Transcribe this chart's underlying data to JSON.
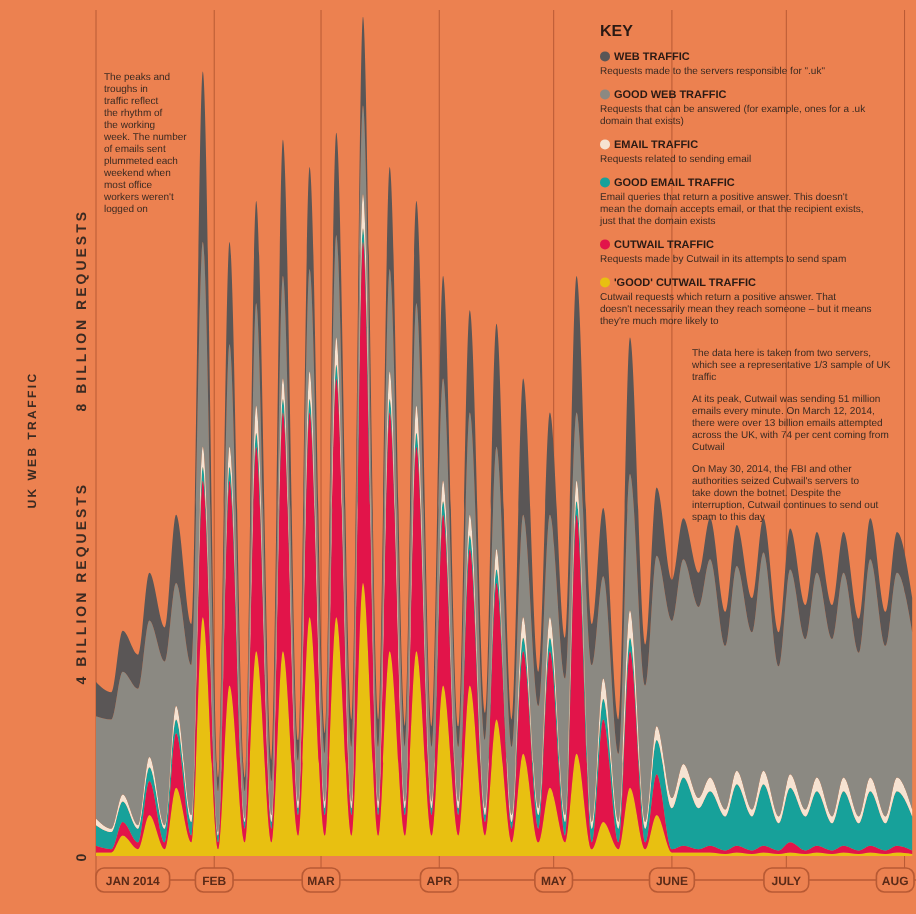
{
  "chart_data": {
    "type": "area",
    "stacked": true,
    "ylabel": "UK WEB TRAFFIC",
    "legend_title": "KEY",
    "legend": "top right",
    "grid": "x",
    "x": [
      "2014-01-01",
      "2014-01-05",
      "2014-01-08",
      "2014-01-12",
      "2014-01-15",
      "2014-01-19",
      "2014-01-22",
      "2014-01-26",
      "2014-01-29",
      "2014-02-02",
      "2014-02-05",
      "2014-02-09",
      "2014-02-12",
      "2014-02-16",
      "2014-02-19",
      "2014-02-23",
      "2014-02-26",
      "2014-03-02",
      "2014-03-05",
      "2014-03-09",
      "2014-03-12",
      "2014-03-16",
      "2014-03-19",
      "2014-03-23",
      "2014-03-26",
      "2014-03-30",
      "2014-04-02",
      "2014-04-06",
      "2014-04-09",
      "2014-04-13",
      "2014-04-16",
      "2014-04-20",
      "2014-04-23",
      "2014-04-27",
      "2014-04-30",
      "2014-05-04",
      "2014-05-07",
      "2014-05-11",
      "2014-05-14",
      "2014-05-18",
      "2014-05-21",
      "2014-05-25",
      "2014-05-28",
      "2014-06-01",
      "2014-06-04",
      "2014-06-08",
      "2014-06-11",
      "2014-06-15",
      "2014-06-18",
      "2014-06-22",
      "2014-06-25",
      "2014-06-29",
      "2014-07-02",
      "2014-07-06",
      "2014-07-09",
      "2014-07-13",
      "2014-07-16",
      "2014-07-20",
      "2014-07-23",
      "2014-07-27",
      "2014-07-30",
      "2014-08-03"
    ],
    "series": [
      {
        "name": "'GOOD' CUTWAIL TRAFFIC",
        "color": "#e8c011",
        "values": [
          0.05,
          0.05,
          0.3,
          0.1,
          0.6,
          0.1,
          1.0,
          0.2,
          3.5,
          0.1,
          2.5,
          0.2,
          3.0,
          0.2,
          3.0,
          0.3,
          3.5,
          0.3,
          3.5,
          0.3,
          4.0,
          0.3,
          3.0,
          0.3,
          3.0,
          0.3,
          2.5,
          0.3,
          2.5,
          0.3,
          2.0,
          0.2,
          1.5,
          0.2,
          1.0,
          0.2,
          1.5,
          0.1,
          0.5,
          0.1,
          1.0,
          0.1,
          0.6,
          0.05,
          0.05,
          0.05,
          0.05,
          0.03,
          0.05,
          0.03,
          0.05,
          0.03,
          0.05,
          0.03,
          0.05,
          0.03,
          0.05,
          0.03,
          0.05,
          0.03,
          0.05,
          0.03
        ]
      },
      {
        "name": "CUTWAIL TRAFFIC",
        "color": "#e2144a",
        "values": [
          0.1,
          0.05,
          0.2,
          0.1,
          0.5,
          0.1,
          0.8,
          0.1,
          2.0,
          0.1,
          3.0,
          0.2,
          3.0,
          0.2,
          3.5,
          0.3,
          3.0,
          0.3,
          3.5,
          0.3,
          5.0,
          0.3,
          3.5,
          0.3,
          3.0,
          0.3,
          2.5,
          0.3,
          2.0,
          0.2,
          2.0,
          0.2,
          1.5,
          0.2,
          2.0,
          0.1,
          3.5,
          0.1,
          1.5,
          0.1,
          2.0,
          0.1,
          0.6,
          0.05,
          0.1,
          0.05,
          0.1,
          0.05,
          0.1,
          0.05,
          0.1,
          0.05,
          0.15,
          0.05,
          0.1,
          0.05,
          0.1,
          0.05,
          0.1,
          0.05,
          0.1,
          0.05
        ]
      },
      {
        "name": "GOOD EMAIL TRAFFIC",
        "color": "#17a19a",
        "values": [
          0.3,
          0.25,
          0.3,
          0.2,
          0.2,
          0.2,
          0.2,
          0.2,
          0.2,
          0.1,
          0.2,
          0.1,
          0.2,
          0.1,
          0.2,
          0.1,
          0.2,
          0.1,
          0.2,
          0.1,
          0.2,
          0.1,
          0.2,
          0.1,
          0.2,
          0.1,
          0.2,
          0.1,
          0.2,
          0.1,
          0.2,
          0.1,
          0.2,
          0.2,
          0.2,
          0.2,
          0.2,
          0.2,
          0.3,
          0.2,
          0.2,
          0.2,
          0.5,
          0.6,
          1.0,
          0.6,
          0.8,
          0.5,
          0.9,
          0.5,
          0.9,
          0.4,
          0.8,
          0.5,
          0.8,
          0.4,
          0.8,
          0.4,
          0.8,
          0.4,
          0.8,
          0.5
        ]
      },
      {
        "name": "EMAIL TRAFFIC",
        "color": "#f6e3d2",
        "values": [
          0.1,
          0.05,
          0.1,
          0.05,
          0.15,
          0.05,
          0.2,
          0.1,
          0.3,
          0.05,
          0.3,
          0.05,
          0.4,
          0.1,
          0.3,
          0.1,
          0.4,
          0.1,
          0.4,
          0.1,
          0.5,
          0.1,
          0.4,
          0.1,
          0.4,
          0.1,
          0.3,
          0.1,
          0.3,
          0.1,
          0.3,
          0.1,
          0.3,
          0.1,
          0.3,
          0.1,
          0.3,
          0.1,
          0.3,
          0.1,
          0.4,
          0.1,
          0.2,
          0.15,
          0.2,
          0.15,
          0.2,
          0.1,
          0.2,
          0.1,
          0.2,
          0.1,
          0.2,
          0.1,
          0.2,
          0.1,
          0.2,
          0.1,
          0.2,
          0.1,
          0.2,
          0.1
        ]
      },
      {
        "name": "GOOD WEB TRAFFIC",
        "color": "#8b8982",
        "values": [
          1.5,
          1.6,
          1.8,
          2.0,
          2.0,
          2.4,
          1.8,
          2.2,
          3.0,
          0.6,
          1.5,
          0.4,
          1.5,
          0.5,
          1.5,
          0.6,
          1.5,
          0.7,
          1.5,
          0.8,
          1.3,
          0.8,
          1.5,
          0.8,
          1.5,
          0.8,
          1.5,
          0.8,
          1.5,
          1.0,
          1.5,
          1.0,
          1.5,
          1.5,
          1.5,
          2.0,
          1.0,
          2.3,
          1.5,
          1.0,
          2.0,
          2.0,
          2.5,
          2.6,
          3.0,
          2.8,
          3.2,
          2.4,
          3.0,
          2.6,
          3.2,
          2.2,
          3.0,
          2.5,
          3.0,
          2.6,
          3.0,
          2.4,
          3.2,
          2.5,
          3.0,
          2.6
        ]
      },
      {
        "name": "WEB TRAFFIC",
        "color": "#5a5656",
        "values": [
          0.5,
          0.4,
          0.6,
          0.5,
          0.7,
          0.5,
          1.0,
          0.6,
          2.5,
          0.2,
          1.5,
          0.2,
          1.5,
          0.3,
          2.0,
          0.3,
          1.5,
          0.3,
          1.5,
          0.4,
          1.3,
          0.4,
          1.5,
          0.3,
          1.5,
          0.3,
          1.5,
          0.3,
          1.5,
          0.4,
          1.8,
          0.4,
          2.0,
          0.5,
          1.5,
          0.6,
          2.0,
          0.6,
          1.0,
          0.5,
          2.0,
          0.6,
          1.0,
          0.6,
          0.6,
          0.5,
          0.6,
          0.5,
          0.6,
          0.5,
          0.5,
          0.5,
          0.6,
          0.5,
          0.6,
          0.5,
          0.6,
          0.5,
          0.6,
          0.5,
          0.6,
          0.5
        ]
      }
    ],
    "xlim": [
      "2014-01-01",
      "2014-08-04"
    ],
    "xticks": [
      {
        "value": "2014-01-01",
        "label": "JAN 2014"
      },
      {
        "value": "2014-02-01",
        "label": "FEB"
      },
      {
        "value": "2014-03-01",
        "label": "MAR"
      },
      {
        "value": "2014-04-01",
        "label": "APR"
      },
      {
        "value": "2014-05-01",
        "label": "MAY"
      },
      {
        "value": "2014-06-01",
        "label": "JUNE"
      },
      {
        "value": "2014-07-01",
        "label": "JULY"
      },
      {
        "value": "2014-08-01",
        "label": "AUG"
      }
    ],
    "ylim": [
      0,
      12.4
    ],
    "yticks": [
      0,
      {
        "value": 4,
        "label": "4 BILLION REQUESTS"
      },
      {
        "value": 8,
        "label": "8 BILLION REQUESTS"
      }
    ],
    "annotations": [
      "Cutwail requests which return a positive answer. That doesn't necessarily mean they reach someone – but it means they're much more likely to",
      "Requests made by Cutwail in its attempts to send spam",
      "Email queries that return a positive answer. This doesn't mean the domain accepts email, or that the recipient exists, just that the domain exists",
      "Requests related to sending email",
      "Requests that can be answered (for example, ones for a .uk domain that exists)",
      "Requests made to the servers responsible for \".uk\"",
      "The data here is taken from two servers, which see a representative 1/3 sample of UK traffic",
      "The peaks and troughs in traffic reflect the rhythm of the working week. The number of emails sent plummeted each weekend when most office workers weren't logged on",
      "At its peak, Cutwail was sending 51 million emails every minute. On March 12, 2014, there were over 13 billion emails attempted across the UK, with 74 per cent coming from Cutwail",
      "On May 30, 2014, the FBI and other authorities seized Cutwail's servers to take down the botnet. Despite the interruption, Cutwail continues to send out spam to this day"
    ]
  }
}
